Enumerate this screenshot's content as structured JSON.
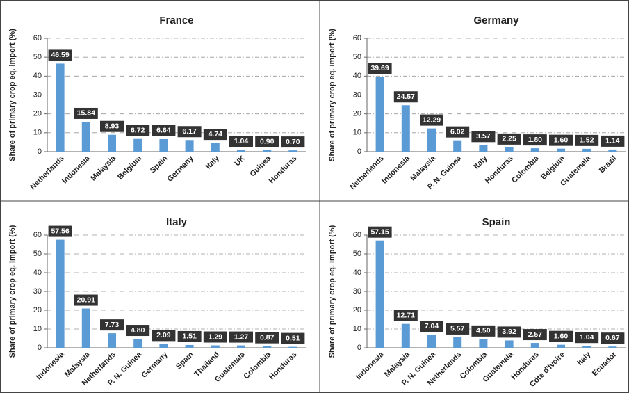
{
  "chart_data": [
    {
      "type": "bar",
      "title": "France",
      "ylabel": "Share of primary crop eq. import (%)",
      "color": "#5b9bd5",
      "categories": [
        "Netherlands",
        "Indonesia",
        "Malaysia",
        "Belgium",
        "Spain",
        "Germany",
        "Italy",
        "UK",
        "Guinea",
        "Honduras"
      ],
      "values": [
        46.59,
        15.84,
        8.93,
        6.72,
        6.64,
        6.17,
        4.74,
        1.04,
        0.9,
        0.7
      ],
      "value_labels": [
        "46.59",
        "15.84",
        "8.93",
        "6.72",
        "6.64",
        "6.17",
        "4.74",
        "1.04",
        "0.90",
        "0.70"
      ],
      "ylim": [
        0,
        60
      ],
      "yticks": [
        0,
        10,
        20,
        30,
        40,
        50,
        60
      ],
      "grid": true
    },
    {
      "type": "bar",
      "title": "Germany",
      "ylabel": "Share of primary crop eq. import (%)",
      "color": "#5b9bd5",
      "categories": [
        "Netherlands",
        "Indonesia",
        "Malaysia",
        "P. N. Guinea",
        "Italy",
        "Honduras",
        "Colombia",
        "Belgium",
        "Guatemala",
        "Brazil"
      ],
      "values": [
        39.69,
        24.57,
        12.29,
        6.02,
        3.57,
        2.25,
        1.8,
        1.6,
        1.52,
        1.14
      ],
      "value_labels": [
        "39.69",
        "24.57",
        "12.29",
        "6.02",
        "3.57",
        "2.25",
        "1.80",
        "1.60",
        "1.52",
        "1.14"
      ],
      "ylim": [
        0,
        60
      ],
      "yticks": [
        0,
        10,
        20,
        30,
        40,
        50,
        60
      ],
      "grid": true
    },
    {
      "type": "bar",
      "title": "Italy",
      "ylabel": "Share of primary crop eq. import (%)",
      "color": "#5b9bd5",
      "categories": [
        "Indonesia",
        "Malaysia",
        "Netherlands",
        "P. N. Guinea",
        "Germany",
        "Spain",
        "Thailand",
        "Guatemala",
        "Colombia",
        "Honduras"
      ],
      "values": [
        57.56,
        20.91,
        7.73,
        4.8,
        2.09,
        1.51,
        1.29,
        1.27,
        0.87,
        0.51
      ],
      "value_labels": [
        "57.56",
        "20.91",
        "7.73",
        "4.80",
        "2.09",
        "1.51",
        "1.29",
        "1.27",
        "0.87",
        "0.51"
      ],
      "ylim": [
        0,
        60
      ],
      "yticks": [
        0,
        10,
        20,
        30,
        40,
        50,
        60
      ],
      "grid": true
    },
    {
      "type": "bar",
      "title": "Spain",
      "ylabel": "Share of primary crop eq. import (%)",
      "color": "#5b9bd5",
      "categories": [
        "Indonesia",
        "Malaysia",
        "P. N. Guinea",
        "Netherlands",
        "Colombia",
        "Guatemala",
        "Honduras",
        "Côte d'Ivoire",
        "Italy",
        "Ecuador"
      ],
      "values": [
        57.15,
        12.71,
        7.04,
        5.57,
        4.5,
        3.92,
        2.57,
        1.6,
        1.04,
        0.67
      ],
      "value_labels": [
        "57.15",
        "12.71",
        "7.04",
        "5.57",
        "4.50",
        "3.92",
        "2.57",
        "1.60",
        "1.04",
        "0.67"
      ],
      "ylim": [
        0,
        60
      ],
      "yticks": [
        0,
        10,
        20,
        30,
        40,
        50,
        60
      ],
      "grid": true
    }
  ]
}
